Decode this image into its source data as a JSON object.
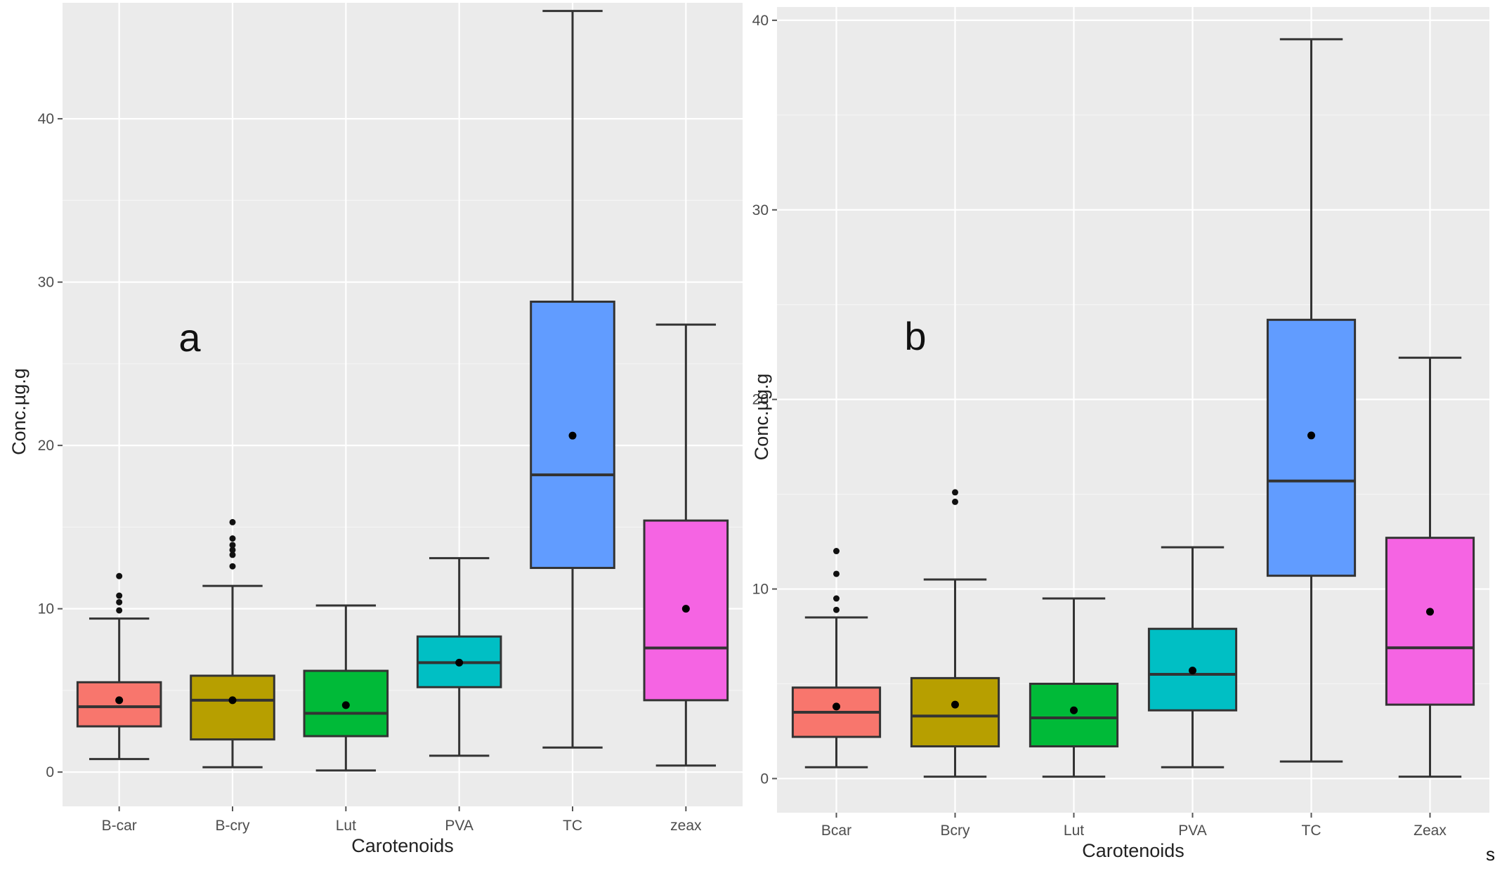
{
  "page": {
    "corner_mark": "s"
  },
  "chart_data": [
    {
      "type": "boxplot",
      "panel_label": "a",
      "xlabel": "Carotenoids",
      "ylabel": "Conc.µg.g",
      "ylim": [
        -2.1,
        47.1
      ],
      "yticks": [
        0,
        10,
        20,
        30,
        40
      ],
      "ytick_labels": [
        "0",
        "10",
        "20",
        "30",
        "40"
      ],
      "categories": [
        "B-car",
        "B-cry",
        "Lut",
        "PVA",
        "TC",
        "zeax"
      ],
      "boxes": [
        {
          "category": "B-car",
          "color": "#f8766d",
          "whisker_low": 0.8,
          "q1": 2.8,
          "median": 4.0,
          "q3": 5.5,
          "whisker_high": 9.4,
          "mean": 4.4,
          "outliers": [
            9.9,
            10.4,
            10.8,
            12.0
          ]
        },
        {
          "category": "B-cry",
          "color": "#b79f00",
          "whisker_low": 0.3,
          "q1": 2.0,
          "median": 4.4,
          "q3": 5.9,
          "whisker_high": 11.4,
          "mean": 4.4,
          "outliers": [
            12.6,
            13.3,
            13.6,
            13.9,
            14.3,
            15.3
          ]
        },
        {
          "category": "Lut",
          "color": "#00ba38",
          "whisker_low": 0.1,
          "q1": 2.2,
          "median": 3.6,
          "q3": 6.2,
          "whisker_high": 10.2,
          "mean": 4.1,
          "outliers": []
        },
        {
          "category": "PVA",
          "color": "#00bfc4",
          "whisker_low": 1.0,
          "q1": 5.2,
          "median": 6.7,
          "q3": 8.3,
          "whisker_high": 13.1,
          "mean": 6.7,
          "outliers": []
        },
        {
          "category": "TC",
          "color": "#619cff",
          "whisker_low": 1.5,
          "q1": 12.5,
          "median": 18.2,
          "q3": 28.8,
          "whisker_high": 46.6,
          "mean": 20.6,
          "outliers": []
        },
        {
          "category": "zeax",
          "color": "#f564e3",
          "whisker_low": 0.4,
          "q1": 4.4,
          "median": 7.6,
          "q3": 15.4,
          "whisker_high": 27.4,
          "mean": 10.0,
          "outliers": []
        }
      ]
    },
    {
      "type": "boxplot",
      "panel_label": "b",
      "xlabel": "Carotenoids",
      "ylabel": "Conc.µg.g",
      "ylim": [
        -1.8,
        40.7
      ],
      "yticks": [
        0,
        10,
        20,
        30,
        40
      ],
      "ytick_labels": [
        "0",
        "10",
        "20",
        "30",
        "40"
      ],
      "categories": [
        "Bcar",
        "Bcry",
        "Lut",
        "PVA",
        "TC",
        "Zeax"
      ],
      "boxes": [
        {
          "category": "Bcar",
          "color": "#f8766d",
          "whisker_low": 0.6,
          "q1": 2.2,
          "median": 3.5,
          "q3": 4.8,
          "whisker_high": 8.5,
          "mean": 3.8,
          "outliers": [
            8.9,
            9.5,
            10.8,
            12.0
          ]
        },
        {
          "category": "Bcry",
          "color": "#b79f00",
          "whisker_low": 0.1,
          "q1": 1.7,
          "median": 3.3,
          "q3": 5.3,
          "whisker_high": 10.5,
          "mean": 3.9,
          "outliers": [
            14.6,
            15.1
          ]
        },
        {
          "category": "Lut",
          "color": "#00ba38",
          "whisker_low": 0.1,
          "q1": 1.7,
          "median": 3.2,
          "q3": 5.0,
          "whisker_high": 9.5,
          "mean": 3.6,
          "outliers": []
        },
        {
          "category": "PVA",
          "color": "#00bfc4",
          "whisker_low": 0.6,
          "q1": 3.6,
          "median": 5.5,
          "q3": 7.9,
          "whisker_high": 12.2,
          "mean": 5.7,
          "outliers": []
        },
        {
          "category": "TC",
          "color": "#619cff",
          "whisker_low": 0.9,
          "q1": 10.7,
          "median": 15.7,
          "q3": 24.2,
          "whisker_high": 39.0,
          "mean": 18.1,
          "outliers": []
        },
        {
          "category": "Zeax",
          "color": "#f564e3",
          "whisker_low": 0.1,
          "q1": 3.9,
          "median": 6.9,
          "q3": 12.7,
          "whisker_high": 22.2,
          "mean": 8.8,
          "outliers": []
        }
      ]
    }
  ]
}
